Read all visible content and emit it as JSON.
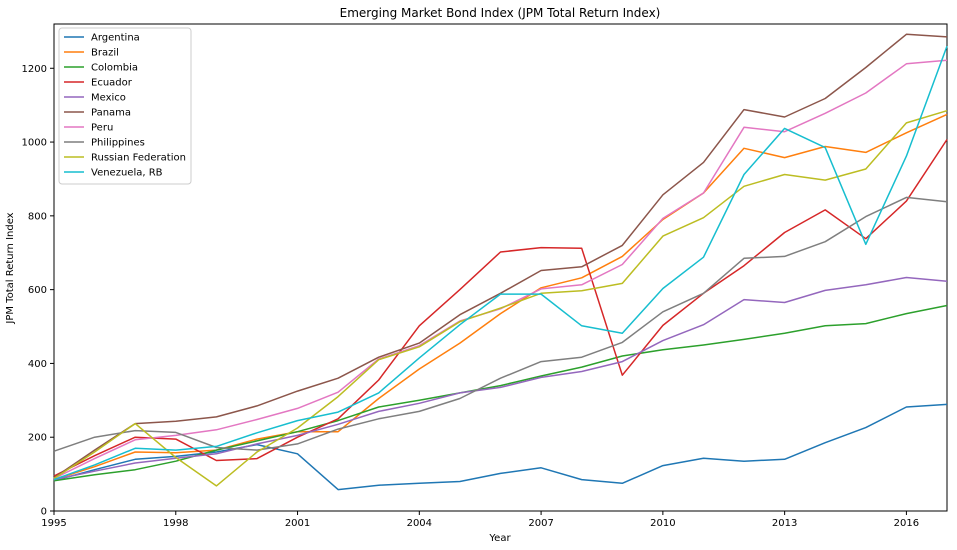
{
  "chart_data": {
    "type": "line",
    "title": "Emerging Market Bond Index (JPM Total Return Index)",
    "xlabel": "Year",
    "ylabel": "JPM Total Return Index",
    "xlim": [
      1995,
      2017
    ],
    "ylim": [
      0,
      1320
    ],
    "xticks": [
      1995,
      1998,
      2001,
      2004,
      2007,
      2010,
      2013,
      2016
    ],
    "yticks": [
      0,
      200,
      400,
      600,
      800,
      1000,
      1200
    ],
    "grid": false,
    "legend": "top-left",
    "x": [
      1995,
      1996,
      1997,
      1998,
      1999,
      2000,
      2001,
      2002,
      2003,
      2004,
      2005,
      2006,
      2007,
      2008,
      2009,
      2010,
      2011,
      2012,
      2013,
      2014,
      2015,
      2016,
      2017
    ],
    "series": [
      {
        "name": "Argentina",
        "color": "#1f77b4",
        "values": [
          82,
          112,
          140,
          148,
          160,
          180,
          155,
          58,
          70,
          75,
          80,
          102,
          117,
          85,
          75,
          123,
          143,
          135,
          140,
          185,
          226,
          282,
          289
        ]
      },
      {
        "name": "Brazil",
        "color": "#ff7f0e",
        "values": [
          85,
          120,
          160,
          158,
          165,
          195,
          215,
          215,
          305,
          385,
          455,
          535,
          605,
          632,
          690,
          790,
          862,
          983,
          958,
          988,
          972,
          1025,
          1075
        ]
      },
      {
        "name": "Colombia",
        "color": "#2ca02c",
        "values": [
          82,
          98,
          112,
          135,
          165,
          190,
          215,
          245,
          282,
          300,
          320,
          340,
          366,
          390,
          420,
          437,
          450,
          465,
          482,
          502,
          508,
          535,
          557
        ]
      },
      {
        "name": "Ecuador",
        "color": "#d62728",
        "values": [
          95,
          150,
          200,
          195,
          137,
          142,
          200,
          250,
          355,
          502,
          600,
          702,
          714,
          712,
          368,
          503,
          590,
          665,
          755,
          816,
          738,
          840,
          1007
        ]
      },
      {
        "name": "Mexico",
        "color": "#9467bd",
        "values": [
          85,
          108,
          130,
          143,
          155,
          182,
          205,
          235,
          270,
          292,
          320,
          335,
          362,
          378,
          405,
          462,
          505,
          573,
          565,
          598,
          613,
          633,
          623
        ]
      },
      {
        "name": "Panama",
        "color": "#8c564b",
        "values": [
          90,
          165,
          237,
          243,
          255,
          285,
          325,
          360,
          417,
          455,
          532,
          590,
          652,
          662,
          720,
          857,
          945,
          1088,
          1068,
          1118,
          1202,
          1292,
          1285
        ]
      },
      {
        "name": "Peru",
        "color": "#e377c2",
        "values": [
          88,
          142,
          193,
          205,
          220,
          248,
          278,
          322,
          412,
          448,
          515,
          548,
          602,
          613,
          668,
          793,
          862,
          1040,
          1028,
          1078,
          1133,
          1212,
          1222
        ]
      },
      {
        "name": "Philippines",
        "color": "#7f7f7f",
        "values": [
          162,
          200,
          218,
          213,
          172,
          165,
          182,
          222,
          250,
          270,
          305,
          360,
          405,
          417,
          457,
          540,
          590,
          685,
          690,
          730,
          798,
          850,
          838
        ]
      },
      {
        "name": "Russian Federation",
        "color": "#bcbd22",
        "values": [
          88,
          160,
          237,
          145,
          68,
          160,
          225,
          310,
          410,
          445,
          513,
          550,
          590,
          597,
          617,
          745,
          795,
          880,
          912,
          897,
          927,
          1052,
          1085
        ]
      },
      {
        "name": "Venezuela, RB",
        "color": "#17becf",
        "values": [
          85,
          125,
          170,
          165,
          175,
          212,
          245,
          268,
          320,
          415,
          505,
          588,
          588,
          502,
          482,
          603,
          688,
          912,
          1037,
          985,
          723,
          962,
          1260
        ]
      }
    ]
  }
}
